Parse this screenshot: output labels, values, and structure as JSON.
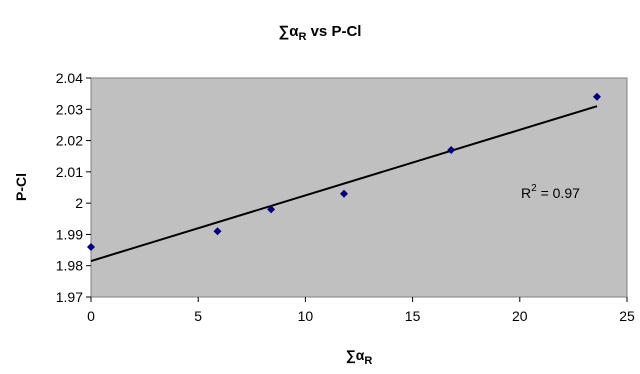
{
  "chart_data": {
    "type": "scatter",
    "title": "∑α",
    "title_sub": "R",
    "title_suffix": " vs P-Cl",
    "xlabel": "∑α",
    "xlabel_sub": "R",
    "ylabel": "P-Cl",
    "xlim": [
      0,
      25
    ],
    "ylim": [
      1.97,
      2.04
    ],
    "x_ticks": [
      0,
      5,
      10,
      15,
      20,
      25
    ],
    "x_tick_labels": [
      "0",
      "5",
      "10",
      "15",
      "20",
      "25"
    ],
    "y_ticks": [
      1.97,
      1.98,
      1.99,
      2.0,
      2.01,
      2.02,
      2.03,
      2.04
    ],
    "y_tick_labels": [
      "1.97",
      "1.98",
      "1.99",
      "2",
      "2.01",
      "2.02",
      "2.03",
      "2.04"
    ],
    "grid": false,
    "plot_background": "#c0c0c0",
    "marker_color": "#000080",
    "trendline_color": "#000000",
    "series": [
      {
        "x": [
          0,
          5.9,
          8.4,
          11.8,
          16.8,
          23.6
        ],
        "y": [
          1.986,
          1.991,
          1.998,
          2.003,
          2.017,
          2.034
        ]
      }
    ],
    "trendline": {
      "x": [
        0,
        23.6
      ],
      "y": [
        1.9815,
        2.031
      ]
    },
    "annotation": {
      "text": "R",
      "sup": "2",
      "rest": " = 0.97"
    }
  }
}
